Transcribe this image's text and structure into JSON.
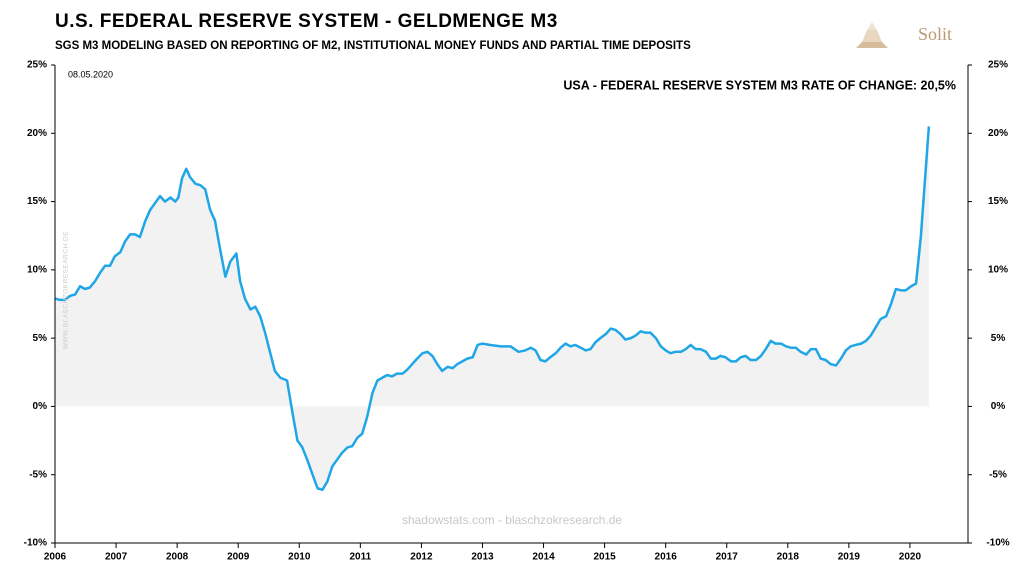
{
  "chart_data": {
    "type": "area_line",
    "title": "U.S. FEDERAL RESERVE SYSTEM - GELDMENGE M3",
    "subtitle": "SGS M3 MODELING BASED ON REPORTING OF M2, INSTITUTIONAL MONEY FUNDS AND PARTIAL TIME DEPOSITS",
    "date": "08.05.2020",
    "annotation": "USA - FEDERAL RESERVE SYSTEM M3 RATE OF CHANGE: 20,5%",
    "source": "shadowstats.com - blaschzokresearch.de",
    "watermark": "WWW.BLASCHZOKRESEARCH.DE",
    "logo": "Solit",
    "color": "#1fa6e6",
    "area_color": "#f2f2f2",
    "x": [
      2006.0,
      2006.08,
      2006.16,
      2006.25,
      2006.33,
      2006.41,
      2006.49,
      2006.57,
      2006.66,
      2006.74,
      2006.82,
      2006.9,
      2006.98,
      2007.07,
      2007.15,
      2007.23,
      2007.31,
      2007.39,
      2007.48,
      2007.56,
      2007.64,
      2007.72,
      2007.8,
      2007.89,
      2007.97,
      2008.02,
      2008.08,
      2008.15,
      2008.21,
      2008.3,
      2008.38,
      2008.46,
      2008.54,
      2008.62,
      2008.7,
      2008.79,
      2008.87,
      2008.97,
      2009.03,
      2009.11,
      2009.2,
      2009.28,
      2009.36,
      2009.44,
      2009.52,
      2009.6,
      2009.69,
      2009.8,
      2009.89,
      2009.97,
      2010.05,
      2010.13,
      2010.21,
      2010.3,
      2010.38,
      2010.46,
      2010.54,
      2010.62,
      2010.7,
      2010.79,
      2010.87,
      2010.95,
      2011.03,
      2011.11,
      2011.2,
      2011.28,
      2011.36,
      2011.44,
      2011.52,
      2011.6,
      2011.69,
      2011.77,
      2011.85,
      2011.93,
      2012.02,
      2012.1,
      2012.18,
      2012.26,
      2012.34,
      2012.43,
      2012.51,
      2012.59,
      2012.67,
      2012.75,
      2012.84,
      2012.92,
      2013.0,
      2013.13,
      2013.3,
      2013.46,
      2013.59,
      2013.7,
      2013.79,
      2013.87,
      2013.95,
      2014.03,
      2014.11,
      2014.2,
      2014.28,
      2014.36,
      2014.44,
      2014.52,
      2014.61,
      2014.69,
      2014.77,
      2014.85,
      2014.93,
      2015.02,
      2015.1,
      2015.18,
      2015.26,
      2015.34,
      2015.43,
      2015.51,
      2015.59,
      2015.67,
      2015.75,
      2015.84,
      2015.92,
      2016.0,
      2016.08,
      2016.16,
      2016.25,
      2016.33,
      2016.41,
      2016.49,
      2016.57,
      2016.66,
      2016.74,
      2016.82,
      2016.9,
      2016.98,
      2017.07,
      2017.15,
      2017.23,
      2017.31,
      2017.39,
      2017.48,
      2017.56,
      2017.64,
      2017.72,
      2017.8,
      2017.89,
      2017.97,
      2018.05,
      2018.13,
      2018.21,
      2018.3,
      2018.38,
      2018.46,
      2018.54,
      2018.62,
      2018.7,
      2018.79,
      2018.87,
      2018.95,
      2019.03,
      2019.11,
      2019.2,
      2019.28,
      2019.36,
      2019.44,
      2019.52,
      2019.61,
      2019.69,
      2019.77,
      2019.85,
      2019.93,
      2020.02,
      2020.1,
      2020.18,
      2020.31
    ],
    "values": [
      7.9,
      7.8,
      7.8,
      8.1,
      8.2,
      8.8,
      8.6,
      8.7,
      9.2,
      9.8,
      10.3,
      10.3,
      11.0,
      11.3,
      12.1,
      12.6,
      12.6,
      12.4,
      13.6,
      14.4,
      14.9,
      15.4,
      15.0,
      15.3,
      15.0,
      15.3,
      16.7,
      17.4,
      16.8,
      16.3,
      16.2,
      15.9,
      14.4,
      13.6,
      11.6,
      9.5,
      10.6,
      11.2,
      9.2,
      7.9,
      7.1,
      7.3,
      6.6,
      5.4,
      4.0,
      2.6,
      2.1,
      1.9,
      -0.5,
      -2.5,
      -3.0,
      -3.9,
      -4.9,
      -6.0,
      -6.1,
      -5.5,
      -4.4,
      -3.9,
      -3.4,
      -3.0,
      -2.9,
      -2.3,
      -2.0,
      -0.8,
      1.0,
      1.9,
      2.1,
      2.3,
      2.2,
      2.4,
      2.4,
      2.7,
      3.1,
      3.5,
      3.9,
      4.0,
      3.7,
      3.1,
      2.6,
      2.9,
      2.8,
      3.1,
      3.3,
      3.5,
      3.6,
      4.5,
      4.6,
      4.5,
      4.4,
      4.4,
      4.0,
      4.1,
      4.3,
      4.1,
      3.4,
      3.3,
      3.6,
      3.9,
      4.3,
      4.6,
      4.4,
      4.5,
      4.3,
      4.1,
      4.2,
      4.7,
      5.0,
      5.3,
      5.7,
      5.6,
      5.3,
      4.9,
      5.0,
      5.2,
      5.5,
      5.4,
      5.4,
      5.0,
      4.4,
      4.1,
      3.9,
      4.0,
      4.0,
      4.2,
      4.5,
      4.2,
      4.2,
      4.0,
      3.5,
      3.5,
      3.7,
      3.6,
      3.3,
      3.3,
      3.6,
      3.7,
      3.4,
      3.4,
      3.7,
      4.2,
      4.8,
      4.6,
      4.6,
      4.4,
      4.3,
      4.3,
      4.0,
      3.8,
      4.2,
      4.2,
      3.5,
      3.4,
      3.1,
      3.0,
      3.5,
      4.1,
      4.4,
      4.5,
      4.6,
      4.8,
      5.2,
      5.8,
      6.4,
      6.6,
      7.5,
      8.6,
      8.5,
      8.5,
      8.8,
      9.0,
      12.5,
      20.5
    ],
    "xlim": [
      2006,
      2021
    ],
    "xticks": [
      2006,
      2007,
      2008,
      2009,
      2010,
      2011,
      2012,
      2013,
      2014,
      2015,
      2016,
      2017,
      2018,
      2019,
      2020
    ],
    "ylim": [
      -10,
      25
    ],
    "yticks": [
      {
        "value": -10,
        "label": "-10%"
      },
      {
        "value": -5,
        "label": "-5%"
      },
      {
        "value": 0,
        "label": "0%"
      },
      {
        "value": 5,
        "label": "5%"
      },
      {
        "value": 10,
        "label": "10%"
      },
      {
        "value": 15,
        "label": "15%"
      },
      {
        "value": 20,
        "label": "20%"
      },
      {
        "value": 25,
        "label": "25%"
      }
    ]
  }
}
